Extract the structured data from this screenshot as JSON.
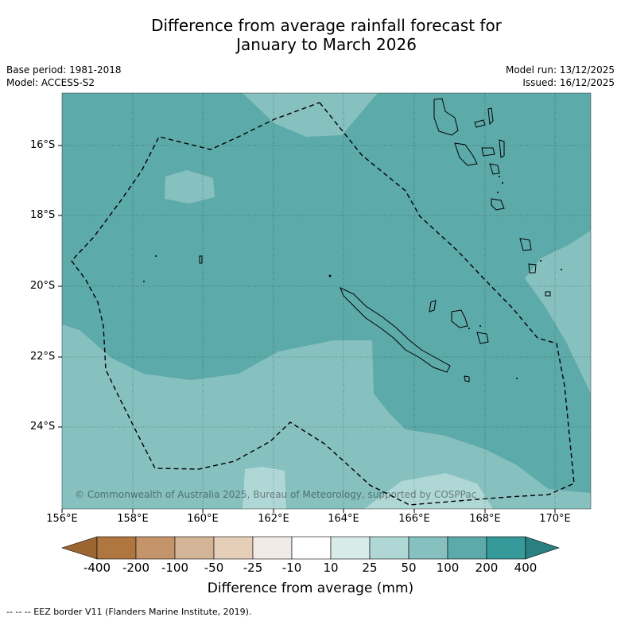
{
  "title_line1": "Difference from average rainfall forecast for",
  "title_line2": "January to March 2026",
  "base_period": "Base period: 1981-2018",
  "model": "Model: ACCESS-S2",
  "model_run": "Model run: 13/12/2025",
  "issued": "Issued: 16/12/2025",
  "lat_labels": [
    "16°S",
    "18°S",
    "20°S",
    "22°S",
    "24°S"
  ],
  "lon_labels": [
    "156°E",
    "158°E",
    "160°E",
    "162°E",
    "164°E",
    "166°E",
    "168°E",
    "170°E"
  ],
  "copyright": "© Commonwealth of Australia 2025, Bureau of Meteorology, supported by COSPPac",
  "colorbar": {
    "labels": [
      "-400",
      "-200",
      "-100",
      "-50",
      "-25",
      "-10",
      "10",
      "25",
      "50",
      "100",
      "200",
      "400"
    ],
    "colors": [
      "#9c6633",
      "#b07640",
      "#c4956a",
      "#d4b496",
      "#e6cfb8",
      "#f0ebe7",
      "#ffffff",
      "#d8ebe9",
      "#afd7d5",
      "#86c0bf",
      "#5caaa9",
      "#36999a",
      "#2a7f80"
    ],
    "title": "Difference from average (mm)"
  },
  "footer": "--  --  -- EEZ border V11 (Flanders Marine Institute, 2019)."
}
